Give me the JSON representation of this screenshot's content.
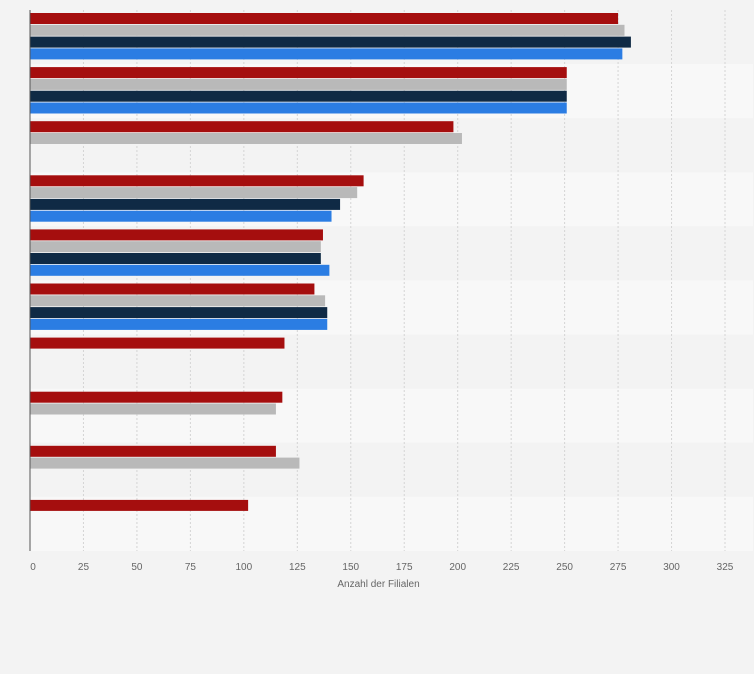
{
  "chart_data": {
    "type": "bar",
    "orientation": "horizontal",
    "title": "",
    "xlabel": "Anzahl der Filialen",
    "ylabel": "",
    "xlim": [
      0,
      325
    ],
    "x_ticks": [
      0,
      25,
      50,
      75,
      100,
      125,
      150,
      175,
      200,
      225,
      250,
      275,
      300,
      325
    ],
    "categories": [
      "",
      "",
      "",
      "",
      "",
      "",
      "",
      "",
      "",
      ""
    ],
    "grid": true,
    "legend": "none",
    "series": [
      {
        "color": "#a50e0e",
        "values": [
          275,
          251,
          198,
          156,
          137,
          133,
          119,
          118,
          115,
          102
        ]
      },
      {
        "color": "#b9b9b9",
        "values": [
          278,
          251,
          202,
          153,
          136,
          138,
          null,
          115,
          126,
          null
        ]
      },
      {
        "color": "#0f2a45",
        "values": [
          281,
          251,
          null,
          145,
          136,
          139,
          null,
          null,
          null,
          null
        ]
      },
      {
        "color": "#2b7de3",
        "values": [
          277,
          251,
          null,
          141,
          140,
          139,
          null,
          null,
          null,
          null
        ]
      }
    ]
  }
}
